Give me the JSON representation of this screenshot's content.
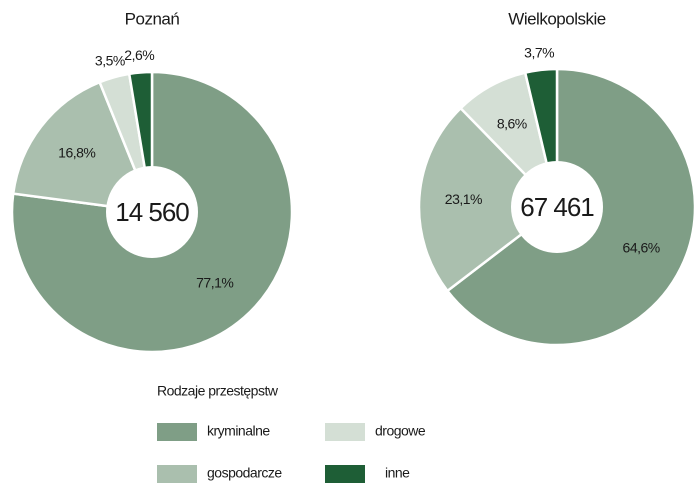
{
  "chart_data": [
    {
      "type": "pie",
      "title": "Poznań",
      "categories": [
        "kryminalne",
        "gospodarcze",
        "drogowe",
        "inne"
      ],
      "values": [
        77.1,
        16.8,
        3.5,
        2.6
      ],
      "value_labels": [
        "77,1%",
        "16,8%",
        "3,5%",
        "2,6%"
      ],
      "colors": [
        "#7f9e86",
        "#aabfae",
        "#d4dfd5",
        "#1e5e36"
      ],
      "total": {
        "value": 14560,
        "label": "14 560"
      }
    },
    {
      "type": "pie",
      "title": "Wielkopolskie",
      "categories": [
        "kryminalne",
        "gospodarcze",
        "drogowe",
        "inne"
      ],
      "values": [
        64.6,
        23.1,
        8.6,
        3.7
      ],
      "value_labels": [
        "64,6%",
        "23,1%",
        "8,6%",
        "3,7%"
      ],
      "colors": [
        "#7f9e86",
        "#aabfae",
        "#d4dfd5",
        "#1e5e36"
      ],
      "total": {
        "value": 67461,
        "label": "67 461"
      }
    }
  ],
  "legend_title": "Rodzaje przestępstw"
}
